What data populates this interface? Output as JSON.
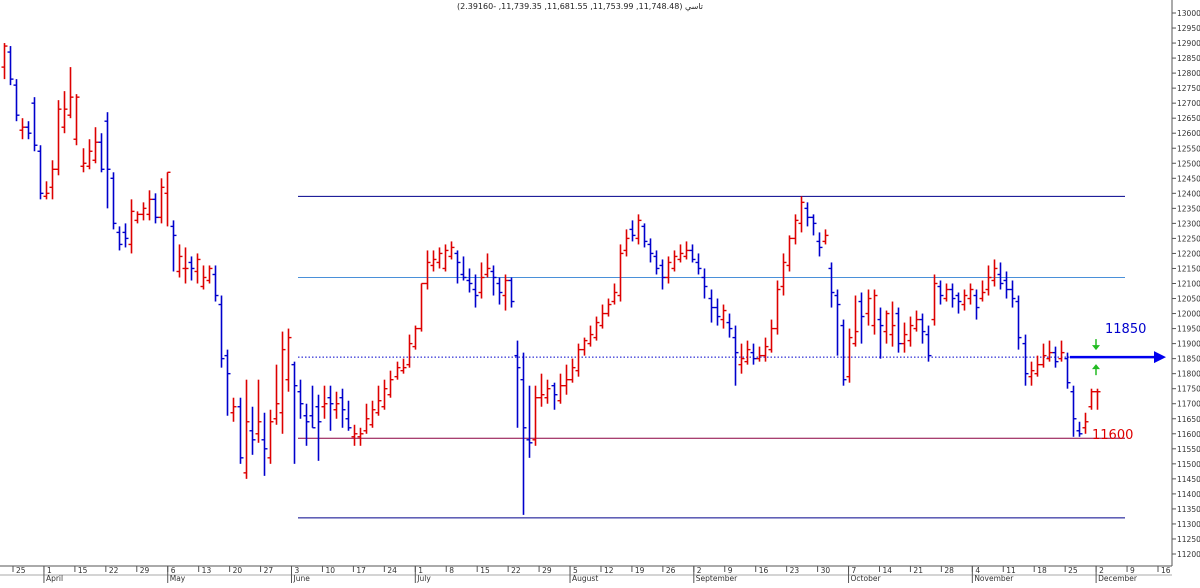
{
  "chart_data": {
    "type": "ohlc",
    "title": "تاسي (11,748.48, 11,753.99, 11,681.55, 11,739.35, -2.39160)",
    "ylim": [
      11200,
      13000
    ],
    "y_ticks": [
      11200,
      11250,
      11300,
      11350,
      11400,
      11450,
      11500,
      11550,
      11600,
      11650,
      11700,
      11750,
      11800,
      11850,
      11900,
      11950,
      12000,
      12050,
      12100,
      12150,
      12200,
      12250,
      12300,
      12350,
      12400,
      12450,
      12500,
      12550,
      12600,
      12650,
      12700,
      12750,
      12800,
      12850,
      12900,
      12950,
      13000
    ],
    "day_ticks": [
      "25",
      "1",
      "15",
      "22",
      "29",
      "6",
      "13",
      "20",
      "27",
      "3",
      "10",
      "17",
      "24",
      "1",
      "8",
      "15",
      "22",
      "29",
      "5",
      "12",
      "19",
      "26",
      "2",
      "9",
      "16",
      "23",
      "30",
      "7",
      "14",
      "21",
      "28",
      "4",
      "11",
      "18",
      "25",
      "2",
      "9",
      "16"
    ],
    "month_labels": [
      "April",
      "May",
      "June",
      "July",
      "August",
      "September",
      "October",
      "November",
      "December"
    ],
    "levels": [
      {
        "name": "top-channel",
        "value": 12390,
        "color": "#00008b",
        "style": "solid"
      },
      {
        "name": "resistance",
        "value": 12120,
        "color": "#4a90d9",
        "style": "solid"
      },
      {
        "name": "pivot",
        "value": 11855,
        "color": "#0000cc",
        "style": "dotted"
      },
      {
        "name": "support",
        "value": 11585,
        "color": "#8b0040",
        "style": "solid"
      },
      {
        "name": "bottom-channel",
        "value": 11320,
        "color": "#00008b",
        "style": "solid"
      }
    ],
    "annotations": [
      {
        "text": "11850",
        "value": 11850,
        "color": "#0000cc"
      },
      {
        "text": "11600",
        "value": 11600,
        "color": "#dd0000"
      }
    ],
    "colors": {
      "up": "#dd0000",
      "down": "#0000cc",
      "axis": "#555555",
      "grid": "#dddddd",
      "arrow": "#0000ee",
      "green": "#22bb22"
    },
    "series": [
      {
        "c": 12890,
        "h": 12900,
        "l": 12780,
        "o": 12820
      },
      {
        "c": 12780,
        "h": 12890,
        "l": 12760,
        "o": 12870
      },
      {
        "c": 12660,
        "h": 12780,
        "l": 12640,
        "o": 12760
      },
      {
        "c": 12620,
        "h": 12650,
        "l": 12580,
        "o": 12610
      },
      {
        "c": 12600,
        "h": 12640,
        "l": 12580,
        "o": 12620
      },
      {
        "c": 12560,
        "h": 12720,
        "l": 12540,
        "o": 12700
      },
      {
        "c": 12400,
        "h": 12560,
        "l": 12380,
        "o": 12540
      },
      {
        "c": 12400,
        "h": 12440,
        "l": 12380,
        "o": 12390
      },
      {
        "c": 12480,
        "h": 12510,
        "l": 12380,
        "o": 12420
      },
      {
        "c": 12680,
        "h": 12710,
        "l": 12460,
        "o": 12480
      },
      {
        "c": 12680,
        "h": 12740,
        "l": 12600,
        "o": 12620
      },
      {
        "c": 12720,
        "h": 12820,
        "l": 12650,
        "o": 12660
      },
      {
        "c": 12720,
        "h": 12730,
        "l": 12560,
        "o": 12580
      },
      {
        "c": 12500,
        "h": 12550,
        "l": 12470,
        "o": 12490
      },
      {
        "c": 12540,
        "h": 12580,
        "l": 12480,
        "o": 12490
      },
      {
        "c": 12570,
        "h": 12620,
        "l": 12500,
        "o": 12510
      },
      {
        "c": 12480,
        "h": 12600,
        "l": 12470,
        "o": 12570
      },
      {
        "c": 12480,
        "h": 12670,
        "l": 12350,
        "o": 12640
      },
      {
        "c": 12300,
        "h": 12470,
        "l": 12280,
        "o": 12450
      },
      {
        "c": 12230,
        "h": 12290,
        "l": 12210,
        "o": 12270
      },
      {
        "c": 12250,
        "h": 12300,
        "l": 12220,
        "o": 12270
      },
      {
        "c": 12340,
        "h": 12380,
        "l": 12200,
        "o": 12230
      },
      {
        "c": 12330,
        "h": 12340,
        "l": 12300,
        "o": 12310
      },
      {
        "c": 12350,
        "h": 12370,
        "l": 12310,
        "o": 12330
      },
      {
        "c": 12380,
        "h": 12410,
        "l": 12310,
        "o": 12330
      },
      {
        "c": 12320,
        "h": 12400,
        "l": 12300,
        "o": 12380
      },
      {
        "c": 12420,
        "h": 12450,
        "l": 12300,
        "o": 12320
      },
      {
        "c": 12470,
        "h": 12470,
        "l": 12290,
        "o": 12400
      },
      {
        "c": 12260,
        "h": 12310,
        "l": 12140,
        "o": 12290
      },
      {
        "c": 12190,
        "h": 12230,
        "l": 12120,
        "o": 12140
      },
      {
        "c": 12150,
        "h": 12220,
        "l": 12100,
        "o": 12150
      },
      {
        "c": 12150,
        "h": 12190,
        "l": 12110,
        "o": 12170
      },
      {
        "c": 12180,
        "h": 12200,
        "l": 12100,
        "o": 12140
      },
      {
        "c": 12120,
        "h": 12160,
        "l": 12080,
        "o": 12090
      },
      {
        "c": 12150,
        "h": 12160,
        "l": 12100,
        "o": 12110
      },
      {
        "c": 12060,
        "h": 12160,
        "l": 12040,
        "o": 12130
      },
      {
        "c": 11850,
        "h": 12060,
        "l": 11820,
        "o": 12030
      },
      {
        "c": 11800,
        "h": 11880,
        "l": 11660,
        "o": 11860
      },
      {
        "c": 11690,
        "h": 11720,
        "l": 11640,
        "o": 11670
      },
      {
        "c": 11520,
        "h": 11720,
        "l": 11500,
        "o": 11690
      },
      {
        "c": 11640,
        "h": 11780,
        "l": 11450,
        "o": 11470
      },
      {
        "c": 11580,
        "h": 11690,
        "l": 11530,
        "o": 11610
      },
      {
        "c": 11640,
        "h": 11780,
        "l": 11570,
        "o": 11600
      },
      {
        "c": 11550,
        "h": 11670,
        "l": 11460,
        "o": 11580
      },
      {
        "c": 11640,
        "h": 11680,
        "l": 11500,
        "o": 11520
      },
      {
        "c": 11700,
        "h": 11830,
        "l": 11630,
        "o": 11650
      },
      {
        "c": 11880,
        "h": 11940,
        "l": 11600,
        "o": 11670
      },
      {
        "c": 11920,
        "h": 11950,
        "l": 11740,
        "o": 11780
      },
      {
        "c": 11760,
        "h": 11840,
        "l": 11500,
        "o": 11830
      },
      {
        "c": 11700,
        "h": 11780,
        "l": 11650,
        "o": 11740
      },
      {
        "c": 11640,
        "h": 11700,
        "l": 11560,
        "o": 11660
      },
      {
        "c": 11620,
        "h": 11760,
        "l": 11620,
        "o": 11660
      },
      {
        "c": 11640,
        "h": 11730,
        "l": 11510,
        "o": 11690
      },
      {
        "c": 11700,
        "h": 11760,
        "l": 11650,
        "o": 11690
      },
      {
        "c": 11700,
        "h": 11760,
        "l": 11610,
        "o": 11720
      },
      {
        "c": 11700,
        "h": 11740,
        "l": 11650,
        "o": 11680
      },
      {
        "c": 11680,
        "h": 11750,
        "l": 11620,
        "o": 11720
      },
      {
        "c": 11620,
        "h": 11710,
        "l": 11610,
        "o": 11650
      },
      {
        "c": 11600,
        "h": 11630,
        "l": 11560,
        "o": 11590
      },
      {
        "c": 11600,
        "h": 11620,
        "l": 11560,
        "o": 11590
      },
      {
        "c": 11650,
        "h": 11700,
        "l": 11600,
        "o": 11610
      },
      {
        "c": 11680,
        "h": 11710,
        "l": 11620,
        "o": 11630
      },
      {
        "c": 11710,
        "h": 11760,
        "l": 11660,
        "o": 11670
      },
      {
        "c": 11750,
        "h": 11780,
        "l": 11680,
        "o": 11690
      },
      {
        "c": 11780,
        "h": 11810,
        "l": 11720,
        "o": 11730
      },
      {
        "c": 11820,
        "h": 11840,
        "l": 11780,
        "o": 11790
      },
      {
        "c": 11820,
        "h": 11850,
        "l": 11800,
        "o": 11810
      },
      {
        "c": 11900,
        "h": 11930,
        "l": 11820,
        "o": 11830
      },
      {
        "c": 11950,
        "h": 11960,
        "l": 11880,
        "o": 11890
      },
      {
        "c": 12100,
        "h": 12100,
        "l": 11940,
        "o": 11950
      },
      {
        "c": 12170,
        "h": 12210,
        "l": 12080,
        "o": 12100
      },
      {
        "c": 12180,
        "h": 12210,
        "l": 12140,
        "o": 12160
      },
      {
        "c": 12200,
        "h": 12220,
        "l": 12150,
        "o": 12170
      },
      {
        "c": 12210,
        "h": 12230,
        "l": 12140,
        "o": 12150
      },
      {
        "c": 12220,
        "h": 12240,
        "l": 12180,
        "o": 12190
      },
      {
        "c": 12170,
        "h": 12210,
        "l": 12100,
        "o": 12200
      },
      {
        "c": 12120,
        "h": 12190,
        "l": 12110,
        "o": 12130
      },
      {
        "c": 12100,
        "h": 12150,
        "l": 12070,
        "o": 12110
      },
      {
        "c": 12060,
        "h": 12130,
        "l": 12020,
        "o": 12080
      },
      {
        "c": 12120,
        "h": 12170,
        "l": 12050,
        "o": 12070
      },
      {
        "c": 12150,
        "h": 12200,
        "l": 12120,
        "o": 12130
      },
      {
        "c": 12120,
        "h": 12160,
        "l": 12060,
        "o": 12140
      },
      {
        "c": 12070,
        "h": 12120,
        "l": 12030,
        "o": 12100
      },
      {
        "c": 12110,
        "h": 12130,
        "l": 12010,
        "o": 12060
      },
      {
        "c": 12040,
        "h": 12120,
        "l": 12020,
        "o": 12110
      },
      {
        "c": 11820,
        "h": 11910,
        "l": 11620,
        "o": 11860
      },
      {
        "c": 11620,
        "h": 11870,
        "l": 11330,
        "o": 11780
      },
      {
        "c": 11570,
        "h": 11760,
        "l": 11520,
        "o": 11580
      },
      {
        "c": 11720,
        "h": 11760,
        "l": 11560,
        "o": 11580
      },
      {
        "c": 11730,
        "h": 11800,
        "l": 11690,
        "o": 11720
      },
      {
        "c": 11750,
        "h": 11780,
        "l": 11700,
        "o": 11720
      },
      {
        "c": 11730,
        "h": 11770,
        "l": 11680,
        "o": 11760
      },
      {
        "c": 11760,
        "h": 11800,
        "l": 11700,
        "o": 11710
      },
      {
        "c": 11780,
        "h": 11830,
        "l": 11730,
        "o": 11760
      },
      {
        "c": 11820,
        "h": 11850,
        "l": 11770,
        "o": 11780
      },
      {
        "c": 11880,
        "h": 11900,
        "l": 11790,
        "o": 11810
      },
      {
        "c": 11910,
        "h": 11920,
        "l": 11860,
        "o": 11880
      },
      {
        "c": 11930,
        "h": 11960,
        "l": 11890,
        "o": 11900
      },
      {
        "c": 11970,
        "h": 11990,
        "l": 11910,
        "o": 11920
      },
      {
        "c": 12000,
        "h": 12030,
        "l": 11950,
        "o": 11960
      },
      {
        "c": 12030,
        "h": 12050,
        "l": 11990,
        "o": 12000
      },
      {
        "c": 12070,
        "h": 12100,
        "l": 12030,
        "o": 12040
      },
      {
        "c": 12200,
        "h": 12230,
        "l": 12040,
        "o": 12060
      },
      {
        "c": 12250,
        "h": 12280,
        "l": 12190,
        "o": 12210
      },
      {
        "c": 12260,
        "h": 12310,
        "l": 12240,
        "o": 12280
      },
      {
        "c": 12310,
        "h": 12330,
        "l": 12230,
        "o": 12250
      },
      {
        "c": 12240,
        "h": 12300,
        "l": 12220,
        "o": 12290
      },
      {
        "c": 12200,
        "h": 12250,
        "l": 12170,
        "o": 12230
      },
      {
        "c": 12150,
        "h": 12210,
        "l": 12130,
        "o": 12190
      },
      {
        "c": 12120,
        "h": 12180,
        "l": 12080,
        "o": 12160
      },
      {
        "c": 12170,
        "h": 12190,
        "l": 12100,
        "o": 12120
      },
      {
        "c": 12190,
        "h": 12210,
        "l": 12140,
        "o": 12150
      },
      {
        "c": 12200,
        "h": 12230,
        "l": 12170,
        "o": 12180
      },
      {
        "c": 12210,
        "h": 12240,
        "l": 12180,
        "o": 12190
      },
      {
        "c": 12180,
        "h": 12230,
        "l": 12170,
        "o": 12210
      },
      {
        "c": 12150,
        "h": 12200,
        "l": 12130,
        "o": 12170
      },
      {
        "c": 12090,
        "h": 12150,
        "l": 12050,
        "o": 12120
      },
      {
        "c": 12020,
        "h": 12080,
        "l": 11970,
        "o": 12050
      },
      {
        "c": 11990,
        "h": 12050,
        "l": 11960,
        "o": 12020
      },
      {
        "c": 12010,
        "h": 12030,
        "l": 11950,
        "o": 11980
      },
      {
        "c": 11950,
        "h": 12000,
        "l": 11920,
        "o": 11970
      },
      {
        "c": 11870,
        "h": 11960,
        "l": 11760,
        "o": 11920
      },
      {
        "c": 11850,
        "h": 11900,
        "l": 11800,
        "o": 11830
      },
      {
        "c": 11880,
        "h": 11910,
        "l": 11830,
        "o": 11840
      },
      {
        "c": 11850,
        "h": 11900,
        "l": 11830,
        "o": 11870
      },
      {
        "c": 11860,
        "h": 11890,
        "l": 11840,
        "o": 11850
      },
      {
        "c": 11890,
        "h": 11920,
        "l": 11840,
        "o": 11860
      },
      {
        "c": 11950,
        "h": 11980,
        "l": 11870,
        "o": 11880
      },
      {
        "c": 12080,
        "h": 12110,
        "l": 11930,
        "o": 11950
      },
      {
        "c": 12170,
        "h": 12200,
        "l": 12060,
        "o": 12090
      },
      {
        "c": 12250,
        "h": 12260,
        "l": 12140,
        "o": 12160
      },
      {
        "c": 12310,
        "h": 12330,
        "l": 12230,
        "o": 12250
      },
      {
        "c": 12370,
        "h": 12390,
        "l": 12270,
        "o": 12300
      },
      {
        "c": 12320,
        "h": 12370,
        "l": 12290,
        "o": 12350
      },
      {
        "c": 12300,
        "h": 12330,
        "l": 12260,
        "o": 12320
      },
      {
        "c": 12220,
        "h": 12270,
        "l": 12190,
        "o": 12240
      },
      {
        "c": 12260,
        "h": 12280,
        "l": 12230,
        "o": 12240
      },
      {
        "c": 12070,
        "h": 12170,
        "l": 12020,
        "o": 12150
      },
      {
        "c": 12030,
        "h": 12080,
        "l": 11860,
        "o": 12060
      },
      {
        "c": 11780,
        "h": 11980,
        "l": 11760,
        "o": 11960
      },
      {
        "c": 11920,
        "h": 11950,
        "l": 11770,
        "o": 11790
      },
      {
        "c": 11940,
        "h": 12060,
        "l": 11890,
        "o": 11900
      },
      {
        "c": 11990,
        "h": 12070,
        "l": 11900,
        "o": 12040
      },
      {
        "c": 12050,
        "h": 12080,
        "l": 11960,
        "o": 12000
      },
      {
        "c": 12060,
        "h": 12080,
        "l": 11930,
        "o": 11960
      },
      {
        "c": 11960,
        "h": 12020,
        "l": 11850,
        "o": 11980
      },
      {
        "c": 12000,
        "h": 12010,
        "l": 11900,
        "o": 11940
      },
      {
        "c": 11960,
        "h": 12040,
        "l": 11890,
        "o": 11930
      },
      {
        "c": 11900,
        "h": 12020,
        "l": 11870,
        "o": 12000
      },
      {
        "c": 11930,
        "h": 11970,
        "l": 11870,
        "o": 11900
      },
      {
        "c": 11960,
        "h": 11990,
        "l": 11890,
        "o": 11910
      },
      {
        "c": 11980,
        "h": 12010,
        "l": 11940,
        "o": 11950
      },
      {
        "c": 11940,
        "h": 12000,
        "l": 11900,
        "o": 11980
      },
      {
        "c": 11860,
        "h": 11960,
        "l": 11840,
        "o": 11930
      },
      {
        "c": 12100,
        "h": 12130,
        "l": 11960,
        "o": 11980
      },
      {
        "c": 12060,
        "h": 12110,
        "l": 12030,
        "o": 12090
      },
      {
        "c": 12080,
        "h": 12100,
        "l": 12040,
        "o": 12050
      },
      {
        "c": 12050,
        "h": 12100,
        "l": 12020,
        "o": 12080
      },
      {
        "c": 12040,
        "h": 12070,
        "l": 12000,
        "o": 12060
      },
      {
        "c": 12060,
        "h": 12080,
        "l": 12010,
        "o": 12030
      },
      {
        "c": 12080,
        "h": 12100,
        "l": 12030,
        "o": 12050
      },
      {
        "c": 12020,
        "h": 12080,
        "l": 11980,
        "o": 12060
      },
      {
        "c": 12070,
        "h": 12110,
        "l": 12040,
        "o": 12050
      },
      {
        "c": 12120,
        "h": 12160,
        "l": 12060,
        "o": 12080
      },
      {
        "c": 12150,
        "h": 12180,
        "l": 12090,
        "o": 12110
      },
      {
        "c": 12100,
        "h": 12170,
        "l": 12080,
        "o": 12130
      },
      {
        "c": 12080,
        "h": 12140,
        "l": 12050,
        "o": 12110
      },
      {
        "c": 12050,
        "h": 12110,
        "l": 12020,
        "o": 12080
      },
      {
        "c": 11920,
        "h": 12060,
        "l": 11880,
        "o": 12040
      },
      {
        "c": 11800,
        "h": 11930,
        "l": 11760,
        "o": 11900
      },
      {
        "c": 11810,
        "h": 11840,
        "l": 11760,
        "o": 11790
      },
      {
        "c": 11830,
        "h": 11860,
        "l": 11790,
        "o": 11800
      },
      {
        "c": 11860,
        "h": 11900,
        "l": 11820,
        "o": 11830
      },
      {
        "c": 11870,
        "h": 11910,
        "l": 11840,
        "o": 11850
      },
      {
        "c": 11840,
        "h": 11890,
        "l": 11820,
        "o": 11870
      },
      {
        "c": 11870,
        "h": 11910,
        "l": 11840,
        "o": 11850
      },
      {
        "c": 11770,
        "h": 11870,
        "l": 11750,
        "o": 11850
      },
      {
        "c": 11650,
        "h": 11760,
        "l": 11590,
        "o": 11740
      },
      {
        "c": 11600,
        "h": 11640,
        "l": 11590,
        "o": 11610
      },
      {
        "c": 11640,
        "h": 11670,
        "l": 11600,
        "o": 11620
      },
      {
        "c": 11740,
        "h": 11750,
        "l": 11680,
        "o": 11690
      },
      {
        "c": 11740,
        "h": 11750,
        "l": 11680,
        "o": 11740
      }
    ]
  }
}
